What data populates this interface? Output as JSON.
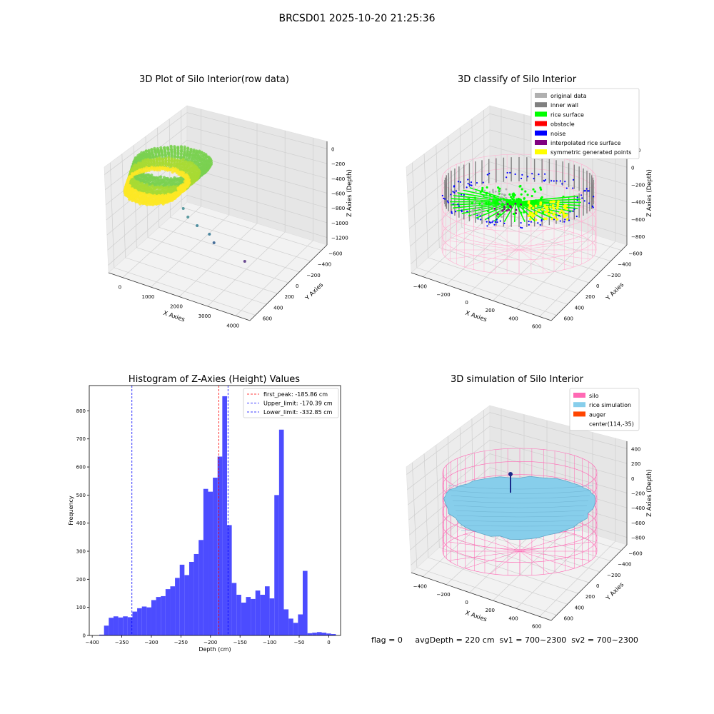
{
  "suptitle": "BRCSD01 2025-10-20 21:25:36",
  "panel_titles": {
    "raw": "3D Plot of Silo Interior(row data)",
    "classify": "3D classify of Silo Interior",
    "hist": "Histogram of Z-Axies (Height) Values",
    "sim": "3D simulation of Silo Interior"
  },
  "footer": "flag = 0     avgDepth = 220 cm  sv1 = 700~2300  sv2 = 700~2300",
  "chart_data": [
    {
      "type": "scatter",
      "subtype": "3d",
      "title": "3D Plot of Silo Interior(row data)",
      "xlabel": "X Axies",
      "ylabel": "Y Axies",
      "zlabel": "Z Axies (Depth)",
      "x_ticks": [
        "0",
        "1000",
        "2000",
        "3000",
        "4000"
      ],
      "y_ticks": [
        "600",
        "400",
        "200",
        "0",
        "−200",
        "−400",
        "−600"
      ],
      "z_ticks": [
        "0",
        "−200",
        "−400",
        "−600",
        "−800",
        "−1000",
        "−1200"
      ],
      "colormap": [
        "#fde725",
        "#7ad151",
        "#22a884",
        "#2a788e",
        "#414487",
        "#440154"
      ],
      "outliers": [
        {
          "x": 1800,
          "y": 0,
          "z": -850,
          "color": "#5a9aa0"
        },
        {
          "x": 1950,
          "y": 0,
          "z": -870,
          "color": "#5a9aa0"
        },
        {
          "x": 2250,
          "y": 0,
          "z": -880,
          "color": "#4f8ea0"
        },
        {
          "x": 2650,
          "y": 0,
          "z": -900,
          "color": "#4a86a0"
        },
        {
          "x": 2800,
          "y": -100,
          "z": -1000,
          "color": "#476f9a"
        },
        {
          "x": 3800,
          "y": -200,
          "z": -1150,
          "color": "#6a4a90"
        }
      ]
    },
    {
      "type": "scatter",
      "subtype": "3d",
      "title": "3D classify of Silo Interior",
      "xlabel": "X Axies",
      "ylabel": "Y Axies",
      "zlabel": "Z Axies (Depth)",
      "x_ticks": [
        "−400",
        "−200",
        "0",
        "200",
        "400",
        "600"
      ],
      "y_ticks": [
        "600",
        "400",
        "200",
        "0",
        "−200",
        "−400",
        "−600"
      ],
      "z_ticks": [
        "200",
        "0",
        "−200",
        "−400",
        "−600",
        "−800"
      ],
      "legend_position": "top-right",
      "legend": [
        {
          "label": "original data",
          "color": "#b0b0b0"
        },
        {
          "label": "inner wall",
          "color": "#808080"
        },
        {
          "label": "rice surface",
          "color": "#00ff00"
        },
        {
          "label": "obstacle",
          "color": "#ff0000"
        },
        {
          "label": "noise",
          "color": "#0000ff"
        },
        {
          "label": "interpolated rice surface",
          "color": "#800080"
        },
        {
          "label": "symmetric generated points",
          "color": "#ffff00"
        }
      ],
      "cylinder_color": "#ffb0d0"
    },
    {
      "type": "bar",
      "subtype": "histogram",
      "title": "Histogram of Z-Axies (Height) Values",
      "xlabel": "Depth (cm)",
      "ylabel": "Frequency",
      "xlim": [
        -405,
        20
      ],
      "ylim": [
        0,
        890
      ],
      "x_ticks": [
        "−400",
        "−350",
        "−300",
        "−250",
        "−200",
        "−150",
        "−100",
        "−50",
        "0"
      ],
      "x_tick_values": [
        -400,
        -350,
        -300,
        -250,
        -200,
        -150,
        -100,
        -50,
        0
      ],
      "y_ticks": [
        "0",
        "100",
        "200",
        "300",
        "400",
        "500",
        "600",
        "700",
        "800"
      ],
      "y_tick_values": [
        0,
        100,
        200,
        300,
        400,
        500,
        600,
        700,
        800
      ],
      "bar_color": "#4c4cff",
      "bin_start": -388,
      "bin_width": 8.0,
      "values": [
        3,
        35,
        63,
        68,
        64,
        68,
        65,
        85,
        97,
        103,
        100,
        126,
        137,
        140,
        165,
        175,
        205,
        252,
        215,
        262,
        290,
        340,
        522,
        512,
        562,
        637,
        852,
        393,
        187,
        145,
        117,
        137,
        130,
        160,
        145,
        175,
        132,
        500,
        733,
        93,
        60,
        45,
        75,
        230,
        8,
        10,
        12,
        10,
        7,
        5
      ],
      "vlines": [
        {
          "label": "first_peak: -185.86 cm",
          "x": -185.86,
          "color": "#ff0000"
        },
        {
          "label": "Upper_limit: -170.39 cm",
          "x": -170.39,
          "color": "#0000ff"
        },
        {
          "label": "Lower_limit: -332.85 cm",
          "x": -332.85,
          "color": "#0000ff"
        }
      ],
      "legend_position": "top-right"
    },
    {
      "type": "scatter",
      "subtype": "3d-surface",
      "title": "3D simulation of Silo Interior",
      "xlabel": "X Axies",
      "ylabel": "Y Axies",
      "zlabel": "Z Axies (Depth)",
      "x_ticks": [
        "−400",
        "−200",
        "0",
        "200",
        "400",
        "600"
      ],
      "y_ticks": [
        "600",
        "400",
        "200",
        "0",
        "−200",
        "−400",
        "−600"
      ],
      "z_ticks": [
        "400",
        "200",
        "0",
        "−200",
        "−400",
        "−600",
        "−800"
      ],
      "legend_position": "top-right",
      "legend": [
        {
          "label": "silo",
          "color": "#ff69b4"
        },
        {
          "label": "rice simulation",
          "color": "#87ceeb"
        },
        {
          "label": "auger",
          "color": "#ff4500"
        },
        {
          "label": "center(114,-35)",
          "color": ""
        }
      ]
    }
  ]
}
